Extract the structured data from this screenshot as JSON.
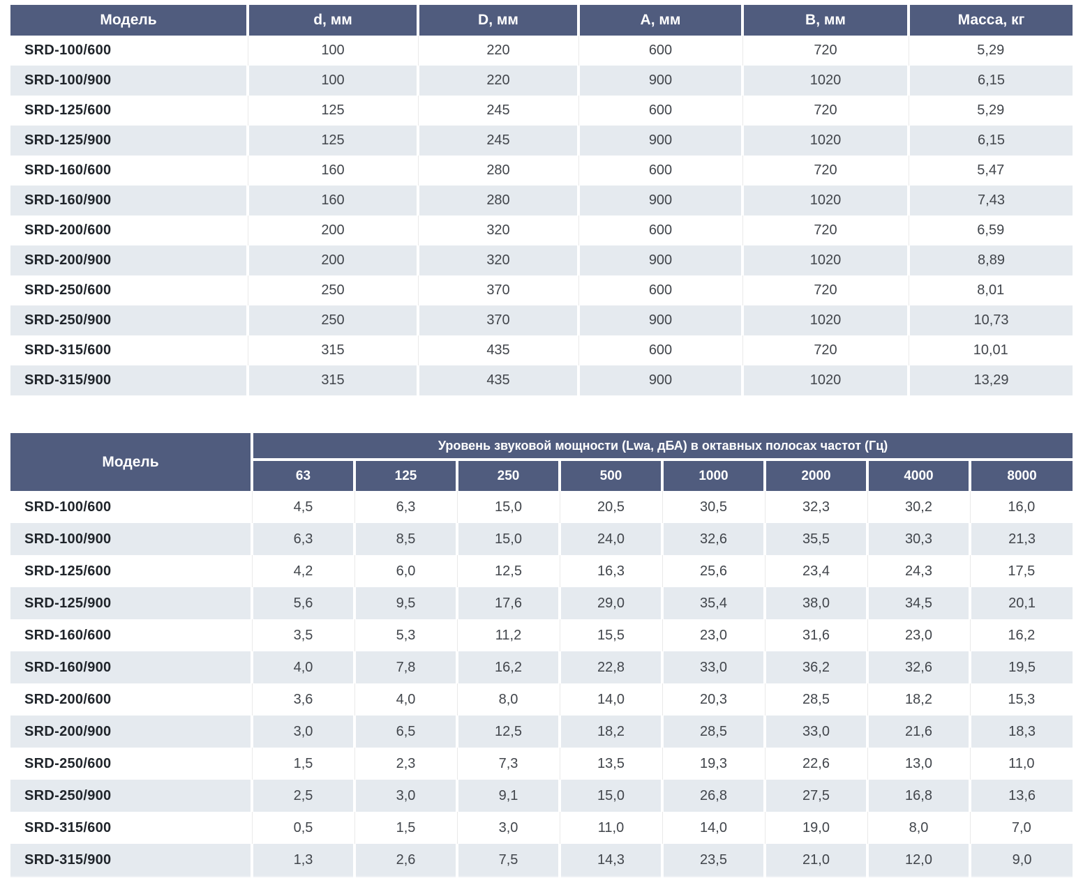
{
  "colors": {
    "header_bg": "#505c7e",
    "band_bg": "#e5eaef",
    "header_text": "#ffffff",
    "value_text": "#41454b",
    "model_text": "#1f242a"
  },
  "dimensions_table": {
    "headers": [
      "Модель",
      "d, мм",
      "D, мм",
      "A, мм",
      "B, мм",
      "Масса, кг"
    ],
    "rows": [
      {
        "model": "SRD-100/600",
        "values": [
          "100",
          "220",
          "600",
          "720",
          "5,29"
        ]
      },
      {
        "model": "SRD-100/900",
        "values": [
          "100",
          "220",
          "900",
          "1020",
          "6,15"
        ]
      },
      {
        "model": "SRD-125/600",
        "values": [
          "125",
          "245",
          "600",
          "720",
          "5,29"
        ]
      },
      {
        "model": "SRD-125/900",
        "values": [
          "125",
          "245",
          "900",
          "1020",
          "6,15"
        ]
      },
      {
        "model": "SRD-160/600",
        "values": [
          "160",
          "280",
          "600",
          "720",
          "5,47"
        ]
      },
      {
        "model": "SRD-160/900",
        "values": [
          "160",
          "280",
          "900",
          "1020",
          "7,43"
        ]
      },
      {
        "model": "SRD-200/600",
        "values": [
          "200",
          "320",
          "600",
          "720",
          "6,59"
        ]
      },
      {
        "model": "SRD-200/900",
        "values": [
          "200",
          "320",
          "900",
          "1020",
          "8,89"
        ]
      },
      {
        "model": "SRD-250/600",
        "values": [
          "250",
          "370",
          "600",
          "720",
          "8,01"
        ]
      },
      {
        "model": "SRD-250/900",
        "values": [
          "250",
          "370",
          "900",
          "1020",
          "10,73"
        ]
      },
      {
        "model": "SRD-315/600",
        "values": [
          "315",
          "435",
          "600",
          "720",
          "10,01"
        ]
      },
      {
        "model": "SRD-315/900",
        "values": [
          "315",
          "435",
          "900",
          "1020",
          "13,29"
        ]
      }
    ]
  },
  "acoustic_table": {
    "model_header": "Модель",
    "span_header": "Уровень звуковой мощности (Lwa, дБА) в октавных полосах частот (Гц)",
    "frequencies": [
      "63",
      "125",
      "250",
      "500",
      "1000",
      "2000",
      "4000",
      "8000"
    ],
    "rows": [
      {
        "model": "SRD-100/600",
        "values": [
          "4,5",
          "6,3",
          "15,0",
          "20,5",
          "30,5",
          "32,3",
          "30,2",
          "16,0"
        ]
      },
      {
        "model": "SRD-100/900",
        "values": [
          "6,3",
          "8,5",
          "15,0",
          "24,0",
          "32,6",
          "35,5",
          "30,3",
          "21,3"
        ]
      },
      {
        "model": "SRD-125/600",
        "values": [
          "4,2",
          "6,0",
          "12,5",
          "16,3",
          "25,6",
          "23,4",
          "24,3",
          "17,5"
        ]
      },
      {
        "model": "SRD-125/900",
        "values": [
          "5,6",
          "9,5",
          "17,6",
          "29,0",
          "35,4",
          "38,0",
          "34,5",
          "20,1"
        ]
      },
      {
        "model": "SRD-160/600",
        "values": [
          "3,5",
          "5,3",
          "11,2",
          "15,5",
          "23,0",
          "31,6",
          "23,0",
          "16,2"
        ]
      },
      {
        "model": "SRD-160/900",
        "values": [
          "4,0",
          "7,8",
          "16,2",
          "22,8",
          "33,0",
          "36,2",
          "32,6",
          "19,5"
        ]
      },
      {
        "model": "SRD-200/600",
        "values": [
          "3,6",
          "4,0",
          "8,0",
          "14,0",
          "20,3",
          "28,5",
          "18,2",
          "15,3"
        ]
      },
      {
        "model": "SRD-200/900",
        "values": [
          "3,0",
          "6,5",
          "12,5",
          "18,2",
          "28,5",
          "33,0",
          "21,6",
          "18,3"
        ]
      },
      {
        "model": "SRD-250/600",
        "values": [
          "1,5",
          "2,3",
          "7,3",
          "13,5",
          "19,3",
          "22,6",
          "13,0",
          "11,0"
        ]
      },
      {
        "model": "SRD-250/900",
        "values": [
          "2,5",
          "3,0",
          "9,1",
          "15,0",
          "26,8",
          "27,5",
          "16,8",
          "13,6"
        ]
      },
      {
        "model": "SRD-315/600",
        "values": [
          "0,5",
          "1,5",
          "3,0",
          "11,0",
          "14,0",
          "19,0",
          "8,0",
          "7,0"
        ]
      },
      {
        "model": "SRD-315/900",
        "values": [
          "1,3",
          "2,6",
          "7,5",
          "14,3",
          "23,5",
          "21,0",
          "12,0",
          "9,0"
        ]
      }
    ]
  }
}
